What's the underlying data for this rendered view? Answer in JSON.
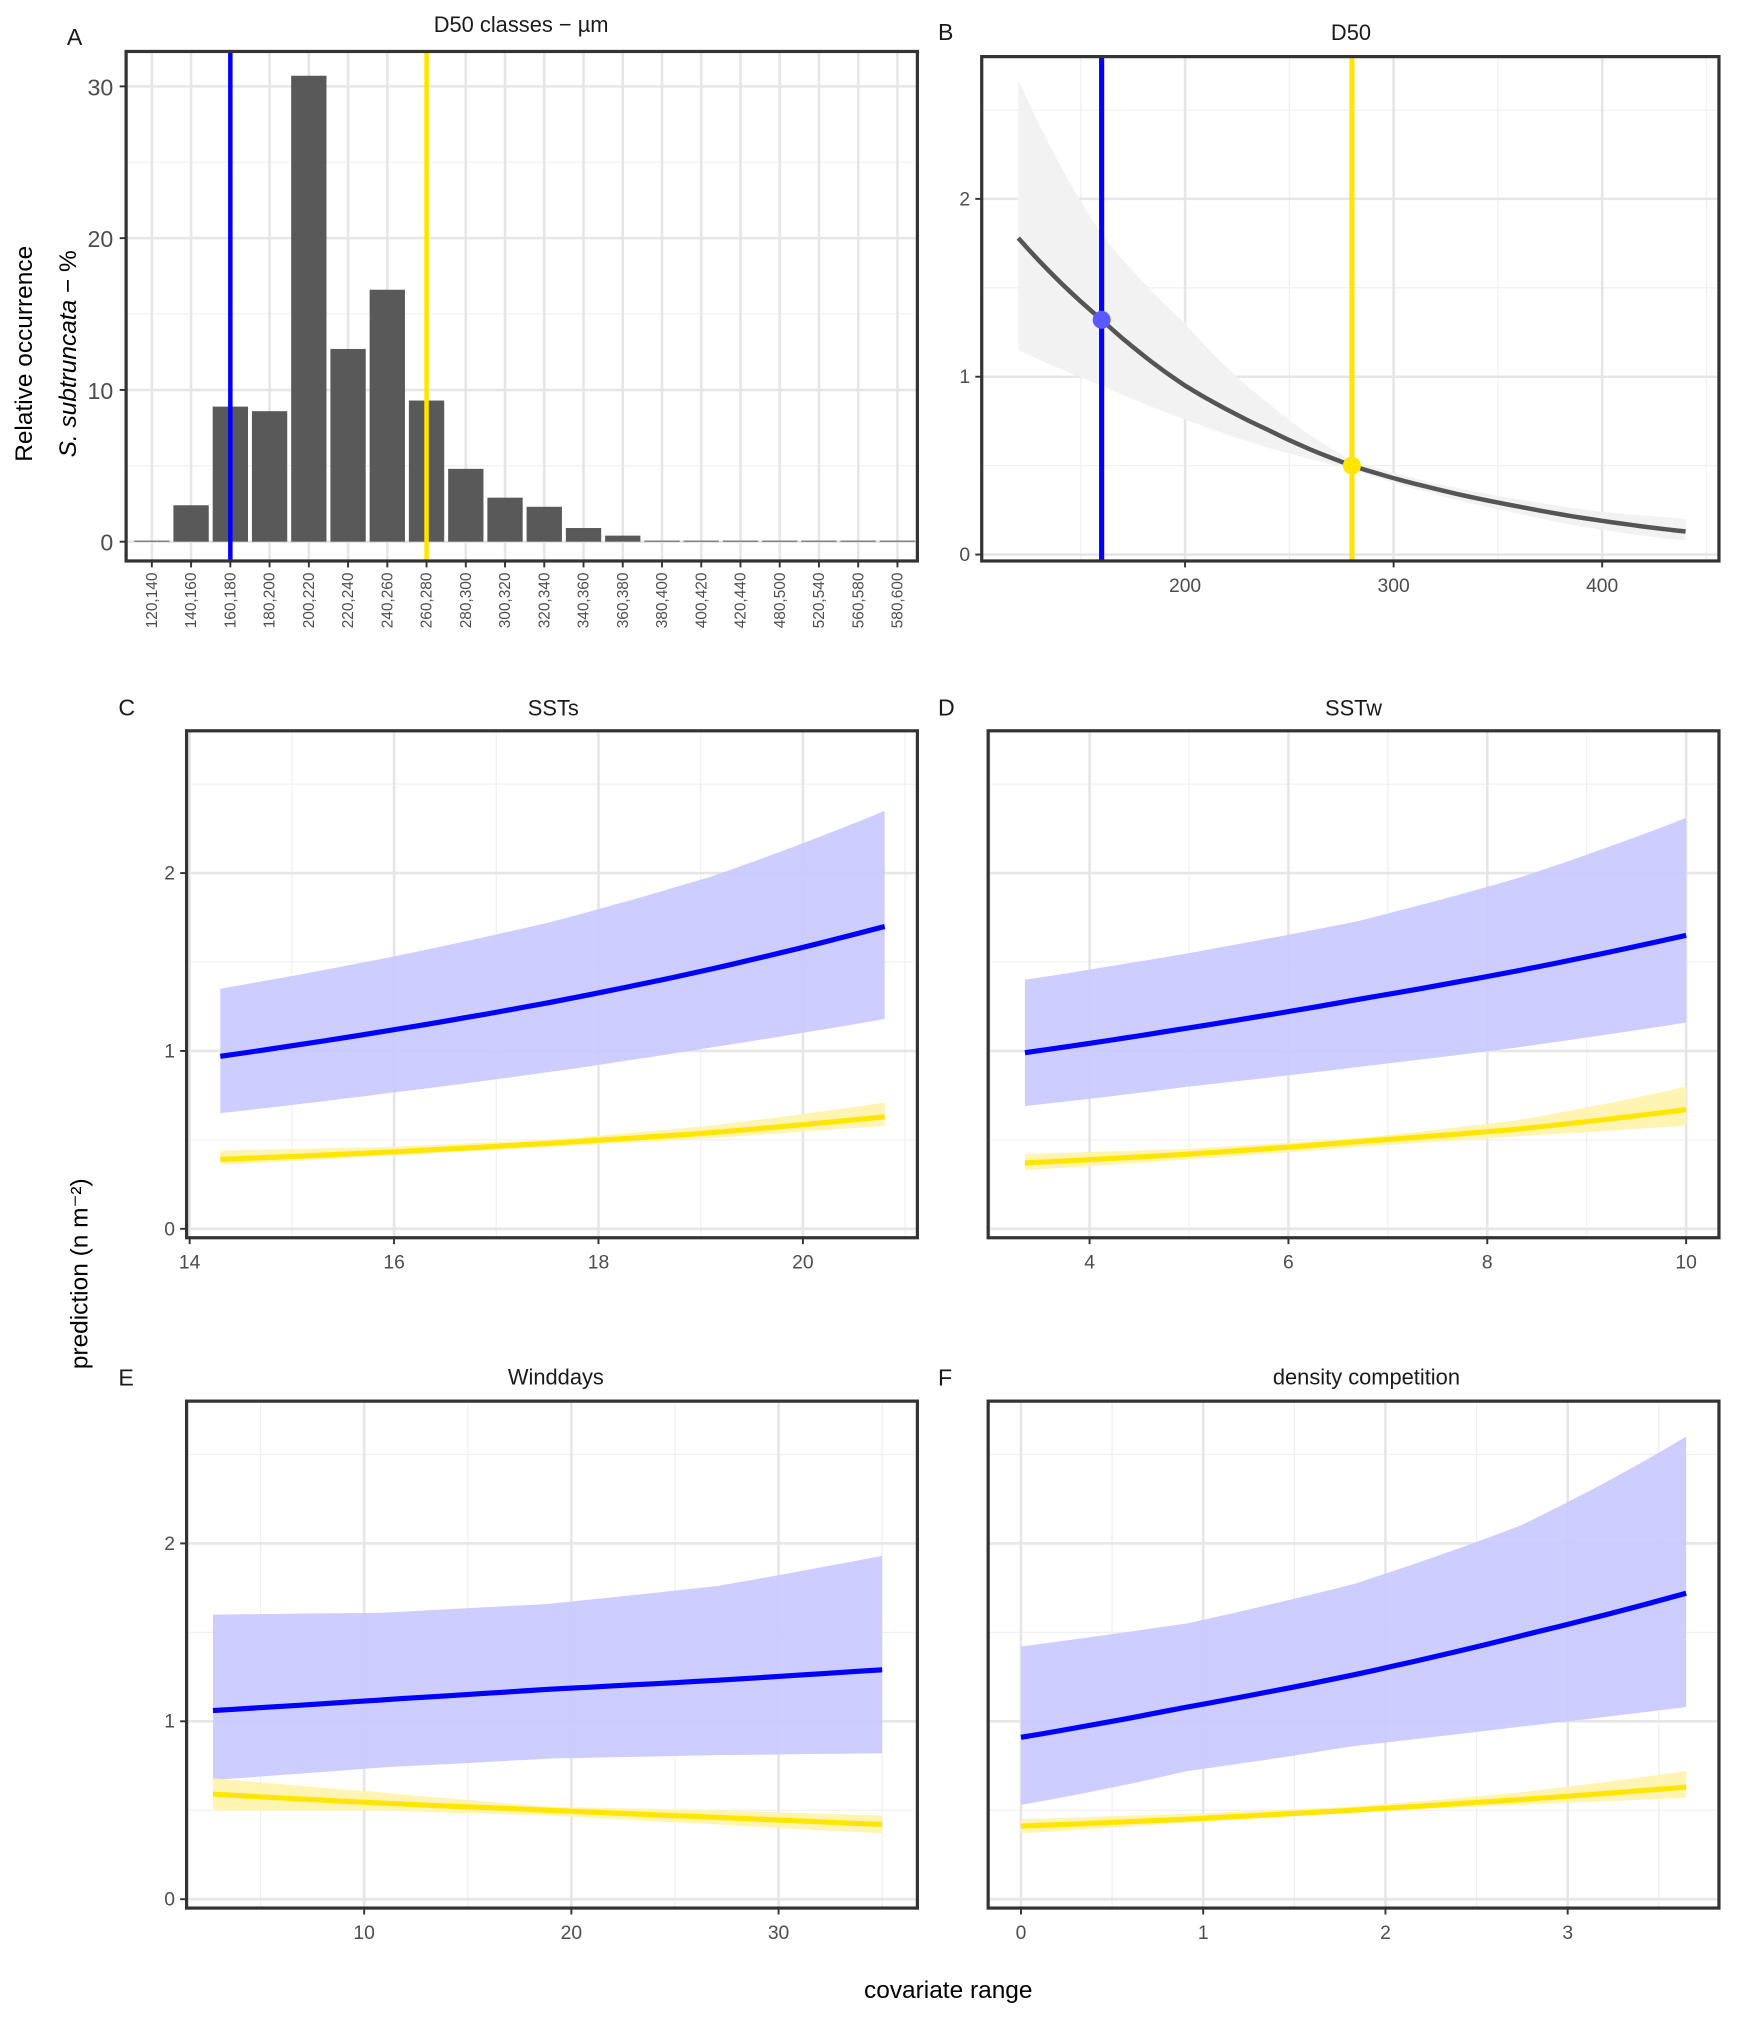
{
  "labels": {
    "y_axis_shared": "prediction (n m⁻²)",
    "x_axis_shared": "covariate range",
    "panelA_ylabel_line1": "Relative occurrence",
    "panelA_ylabel_italic": "S. subtruncata",
    "panelA_ylabel_suffix": " − %"
  },
  "colors": {
    "blue": "#0000ff",
    "yellow": "#ffe600",
    "bar": "#595959",
    "blue_band": "#c8c8ff",
    "yellow_band": "#fff3a8",
    "grey_band": "#f2f2f2",
    "blue_point": "#5a5aff"
  },
  "chart_data": [
    {
      "panel": "A",
      "type": "bar",
      "title": "D50 classes − µm",
      "categories": [
        "120,140",
        "140,160",
        "160,180",
        "180,200",
        "200,220",
        "220,240",
        "240,260",
        "260,280",
        "280,300",
        "300,320",
        "320,340",
        "340,360",
        "360,380",
        "380,400",
        "400,420",
        "420,440",
        "480,500",
        "520,540",
        "560,580",
        "580,600"
      ],
      "values": [
        0,
        2.4,
        8.9,
        8.6,
        30.7,
        12.7,
        16.6,
        9.3,
        4.8,
        2.9,
        2.3,
        0.9,
        0.4,
        0,
        0,
        0,
        0,
        0,
        0,
        0
      ],
      "yticks": [
        0,
        10,
        20,
        30
      ],
      "ylim": [
        -1.27,
        32.3
      ],
      "vlines": [
        {
          "category": "160,180",
          "color": "blue"
        },
        {
          "category": "260,280",
          "color": "yellow"
        }
      ]
    },
    {
      "panel": "B",
      "type": "line",
      "title": "D50",
      "xlim": [
        102.5,
        456
      ],
      "ylim": [
        -0.036,
        2.8
      ],
      "xticks": [
        200,
        300,
        400
      ],
      "yticks": [
        0,
        1,
        2
      ],
      "x": [
        120,
        160,
        200,
        240,
        280,
        320,
        360,
        400,
        440
      ],
      "fit": [
        1.78,
        1.32,
        0.95,
        0.7,
        0.5,
        0.37,
        0.27,
        0.19,
        0.13
      ],
      "lower": [
        1.15,
        0.95,
        0.76,
        0.6,
        0.48,
        0.34,
        0.23,
        0.14,
        0.08
      ],
      "upper": [
        2.67,
        1.8,
        1.3,
        0.85,
        0.53,
        0.4,
        0.31,
        0.24,
        0.2
      ],
      "vlines": [
        {
          "x": 160,
          "color": "blue",
          "point_y": 1.32
        },
        {
          "x": 280,
          "color": "yellow",
          "point_y": 0.5
        }
      ]
    },
    {
      "panel": "C",
      "type": "line",
      "title": "SSTs",
      "xlim": [
        13.97,
        21.12
      ],
      "ylim": [
        -0.05,
        2.8
      ],
      "xticks": [
        14,
        16,
        18,
        20
      ],
      "yticks": [
        0,
        1,
        2
      ],
      "x": [
        14.3,
        15.9,
        17.5,
        19.1,
        20.8
      ],
      "series": [
        {
          "name": "blue",
          "fit": [
            0.97,
            1.11,
            1.27,
            1.46,
            1.7
          ],
          "lower": [
            0.65,
            0.76,
            0.88,
            1.02,
            1.18
          ],
          "upper": [
            1.35,
            1.52,
            1.72,
            1.98,
            2.35
          ]
        },
        {
          "name": "yellow",
          "fit": [
            0.39,
            0.43,
            0.48,
            0.54,
            0.63
          ],
          "lower": [
            0.36,
            0.41,
            0.46,
            0.51,
            0.58
          ],
          "upper": [
            0.44,
            0.46,
            0.5,
            0.58,
            0.71
          ]
        }
      ]
    },
    {
      "panel": "D",
      "type": "line",
      "title": "SSTw",
      "xlim": [
        2.98,
        10.33
      ],
      "ylim": [
        -0.05,
        2.8
      ],
      "xticks": [
        4,
        6,
        8,
        10
      ],
      "yticks": [],
      "x": [
        3.35,
        5,
        6.7,
        8.3,
        10
      ],
      "series": [
        {
          "name": "blue",
          "fit": [
            0.99,
            1.13,
            1.29,
            1.45,
            1.65
          ],
          "lower": [
            0.69,
            0.8,
            0.91,
            1.02,
            1.16
          ],
          "upper": [
            1.4,
            1.55,
            1.73,
            1.97,
            2.31
          ]
        },
        {
          "name": "yellow",
          "fit": [
            0.37,
            0.42,
            0.49,
            0.56,
            0.67
          ],
          "lower": [
            0.33,
            0.39,
            0.46,
            0.52,
            0.58
          ],
          "upper": [
            0.42,
            0.45,
            0.51,
            0.61,
            0.8
          ]
        }
      ]
    },
    {
      "panel": "E",
      "type": "line",
      "title": "Winddays",
      "xlim": [
        1.43,
        36.7
      ],
      "ylim": [
        -0.05,
        2.8
      ],
      "xticks": [
        10,
        20,
        30
      ],
      "yticks": [
        0,
        1,
        2
      ],
      "x": [
        2.7,
        10.8,
        18.9,
        27,
        35
      ],
      "series": [
        {
          "name": "blue",
          "fit": [
            1.06,
            1.12,
            1.18,
            1.23,
            1.29
          ],
          "lower": [
            0.67,
            0.74,
            0.79,
            0.81,
            0.82
          ],
          "upper": [
            1.6,
            1.61,
            1.66,
            1.76,
            1.93
          ]
        },
        {
          "name": "yellow",
          "fit": [
            0.59,
            0.54,
            0.5,
            0.46,
            0.42
          ],
          "lower": [
            0.5,
            0.5,
            0.47,
            0.42,
            0.37
          ],
          "upper": [
            0.68,
            0.6,
            0.52,
            0.5,
            0.47
          ]
        }
      ]
    },
    {
      "panel": "F",
      "type": "line",
      "title": "density competition",
      "xlim": [
        -0.18,
        3.83
      ],
      "ylim": [
        -0.05,
        2.8
      ],
      "xticks": [
        0,
        1,
        2,
        3
      ],
      "yticks": [],
      "x": [
        0,
        0.91,
        1.82,
        2.74,
        3.65
      ],
      "series": [
        {
          "name": "blue",
          "fit": [
            0.91,
            1.08,
            1.26,
            1.48,
            1.72
          ],
          "lower": [
            0.53,
            0.72,
            0.86,
            0.97,
            1.08
          ],
          "upper": [
            1.42,
            1.55,
            1.77,
            2.1,
            2.6
          ]
        },
        {
          "name": "yellow",
          "fit": [
            0.41,
            0.45,
            0.5,
            0.56,
            0.63
          ],
          "lower": [
            0.37,
            0.43,
            0.49,
            0.53,
            0.57
          ],
          "upper": [
            0.45,
            0.48,
            0.52,
            0.6,
            0.72
          ]
        }
      ]
    }
  ]
}
